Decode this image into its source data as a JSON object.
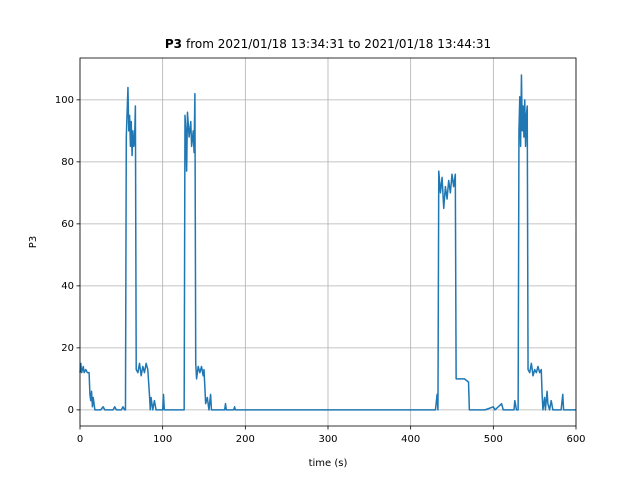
{
  "chart_data": {
    "type": "line",
    "title_bold": "P3",
    "title": "from 2021/01/18 13:34:31 to 2021/01/18 13:44:31",
    "xlabel": "time (s)",
    "ylabel": "P3",
    "xlim": [
      0,
      600
    ],
    "ylim": [
      -5.2,
      113.5
    ],
    "xticks": [
      0,
      100,
      200,
      300,
      400,
      500,
      600
    ],
    "yticks": [
      0,
      20,
      40,
      60,
      80,
      100
    ],
    "grid": true,
    "series": [
      {
        "color": "#1f77b4",
        "x": [
          0,
          1,
          2,
          4,
          5,
          7,
          9,
          11,
          12,
          13,
          14,
          15,
          16,
          18,
          20,
          25,
          28,
          30,
          40,
          42,
          44,
          50,
          52,
          54,
          55,
          56,
          57,
          58,
          59,
          60,
          61,
          62,
          63,
          64,
          65,
          66,
          67,
          68,
          70,
          72,
          74,
          76,
          78,
          80,
          82,
          84,
          85,
          86,
          88,
          90,
          92,
          100,
          101,
          102,
          110,
          120,
          126,
          127,
          128,
          129,
          130,
          132,
          134,
          135,
          137,
          138,
          139,
          140,
          141,
          143,
          145,
          147,
          149,
          150,
          152,
          154,
          156,
          158,
          159,
          175,
          176,
          177,
          186,
          187,
          188,
          300,
          430,
          432,
          433,
          434,
          436,
          438,
          440,
          442,
          444,
          446,
          448,
          450,
          452,
          454,
          455,
          460,
          465,
          470,
          471,
          490,
          500,
          502,
          510,
          512,
          520,
          525,
          526,
          528,
          530,
          531,
          532,
          533,
          534,
          535,
          536,
          537,
          538,
          539,
          540,
          541,
          542,
          544,
          546,
          548,
          550,
          552,
          554,
          556,
          558,
          559,
          560,
          562,
          563,
          565,
          566,
          568,
          570,
          572,
          575,
          580,
          582,
          584,
          585,
          590,
          600
        ],
        "values": [
          12,
          15,
          12,
          14,
          12,
          13,
          12,
          12,
          5,
          3,
          6,
          1,
          4,
          0,
          0,
          0,
          1,
          0,
          0,
          1,
          0,
          0,
          1,
          0,
          0,
          88,
          96,
          104,
          90,
          95,
          85,
          93,
          82,
          90,
          85,
          87,
          98,
          13,
          12,
          15,
          11,
          14,
          12,
          15,
          13,
          5,
          0,
          4,
          0,
          3,
          0,
          0,
          5,
          0,
          0,
          0,
          0,
          95,
          90,
          77,
          96,
          88,
          93,
          85,
          90,
          83,
          102,
          15,
          10,
          14,
          12,
          14,
          11,
          13,
          2,
          4,
          0,
          5,
          0,
          0,
          2,
          0,
          0,
          1,
          0,
          0,
          0,
          5,
          0,
          77,
          70,
          75,
          65,
          72,
          68,
          74,
          70,
          76,
          72,
          76,
          10,
          10,
          10,
          9,
          0,
          0,
          1,
          0,
          2,
          0,
          0,
          0,
          3,
          0,
          0,
          90,
          101,
          85,
          108,
          90,
          98,
          88,
          100,
          85,
          95,
          98,
          13,
          12,
          15,
          11,
          13,
          12,
          14,
          12,
          13,
          5,
          0,
          4,
          0,
          6,
          2,
          0,
          3,
          0,
          0,
          0,
          0,
          5,
          0,
          0,
          0
        ]
      }
    ]
  }
}
